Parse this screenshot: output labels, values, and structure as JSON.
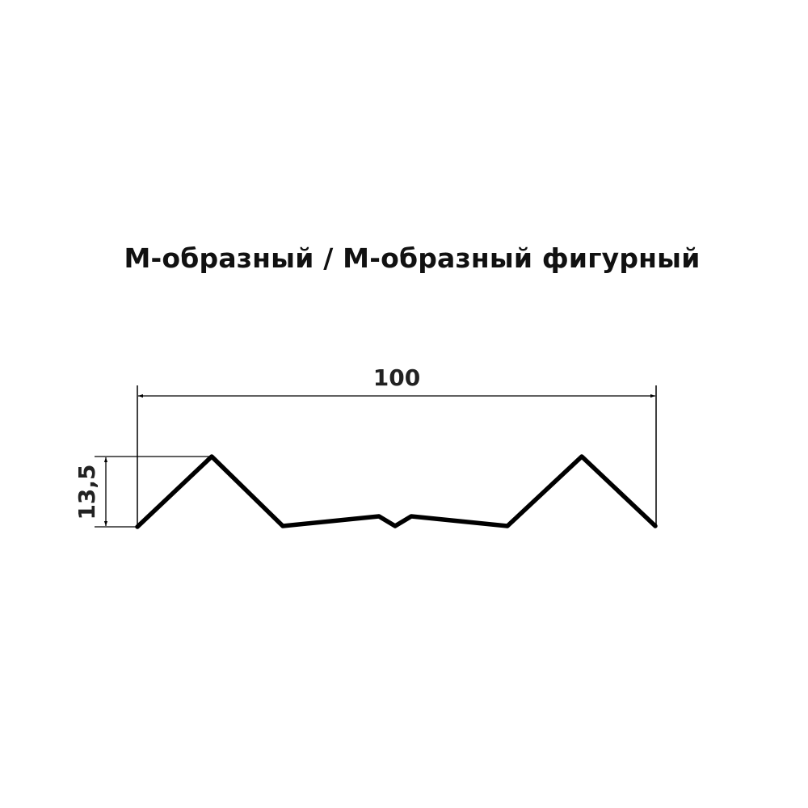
{
  "title": "М-образный / М-образный фигурный",
  "dimensions": {
    "width_label": "100",
    "height_label": "13,5"
  },
  "colors": {
    "line": "#000000",
    "text": "#222222"
  }
}
